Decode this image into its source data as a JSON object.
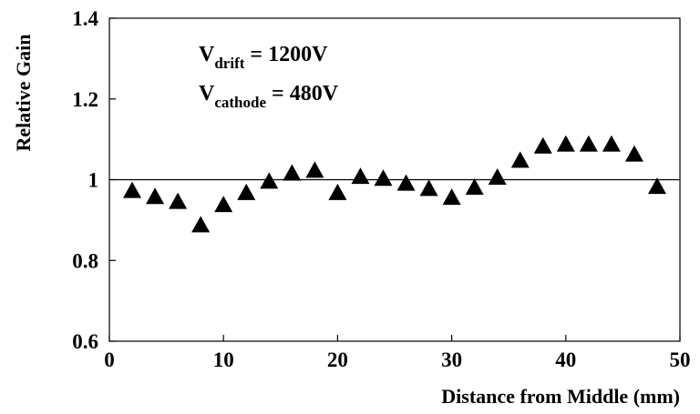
{
  "chart_data": {
    "type": "scatter",
    "xlabel": "Distance from Middle (mm)",
    "ylabel": "Relative Gain",
    "xlim": [
      0,
      50
    ],
    "ylim": [
      0.6,
      1.4
    ],
    "xticks": [
      0,
      10,
      20,
      30,
      40,
      50
    ],
    "yticks": [
      0.6,
      0.8,
      1,
      1.2,
      1.4
    ],
    "xtick_labels": [
      "0",
      "10",
      "20",
      "30",
      "40",
      "50"
    ],
    "ytick_labels": [
      "0.6",
      "0.8",
      "1",
      "1.2",
      "1.4"
    ],
    "reference_line_y": 1,
    "marker": "filled-triangle",
    "marker_color": "#000000",
    "grid": false,
    "annotations": [
      {
        "main": "V",
        "sub": "drift",
        "rest": " = 1200V"
      },
      {
        "main": "V",
        "sub": "cathode",
        "rest": " = 480V"
      }
    ],
    "x": [
      2,
      4,
      6,
      8,
      10,
      12,
      14,
      16,
      18,
      20,
      22,
      24,
      26,
      28,
      30,
      32,
      34,
      36,
      38,
      40,
      42,
      44,
      46,
      48
    ],
    "y": [
      0.975,
      0.96,
      0.948,
      0.89,
      0.94,
      0.97,
      0.998,
      1.018,
      1.025,
      0.97,
      1.01,
      1.005,
      0.993,
      0.98,
      0.958,
      0.983,
      1.008,
      1.05,
      1.085,
      1.09,
      1.09,
      1.09,
      1.065,
      0.985
    ]
  }
}
